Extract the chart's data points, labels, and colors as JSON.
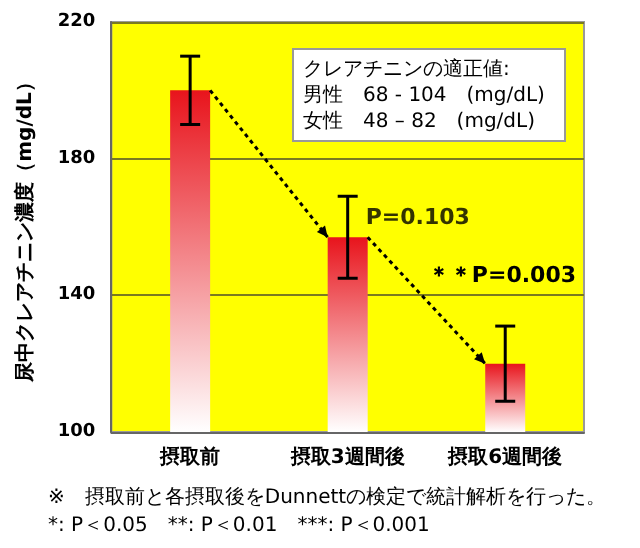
{
  "chart_data": {
    "type": "bar",
    "ylabel": "尿中クレアチニン濃度（mg/dL）",
    "categories": [
      "摂取前",
      "摂取3週間後",
      "摂取6週間後"
    ],
    "values": [
      200,
      157,
      120
    ],
    "errors": [
      10,
      12,
      11
    ],
    "color": "#e8141c",
    "ylim": [
      100,
      220
    ],
    "yticks": [
      100,
      140,
      180,
      220
    ],
    "grid": "y",
    "annotations": [
      "クレアチニンの適正値:\n男性　68 - 104　(mg/dL)\n女性　48 – 82　(mg/dL)",
      {
        "text": "P=0.103",
        "x": "摂取3週間後",
        "y": 163
      },
      "＊＊P=0.003",
      "※　摂取前と各摂取後をDunnettの検定で統計解析を行った。\n*: P＜0.05　**: P＜0.01　***: P＜0.001"
    ]
  }
}
